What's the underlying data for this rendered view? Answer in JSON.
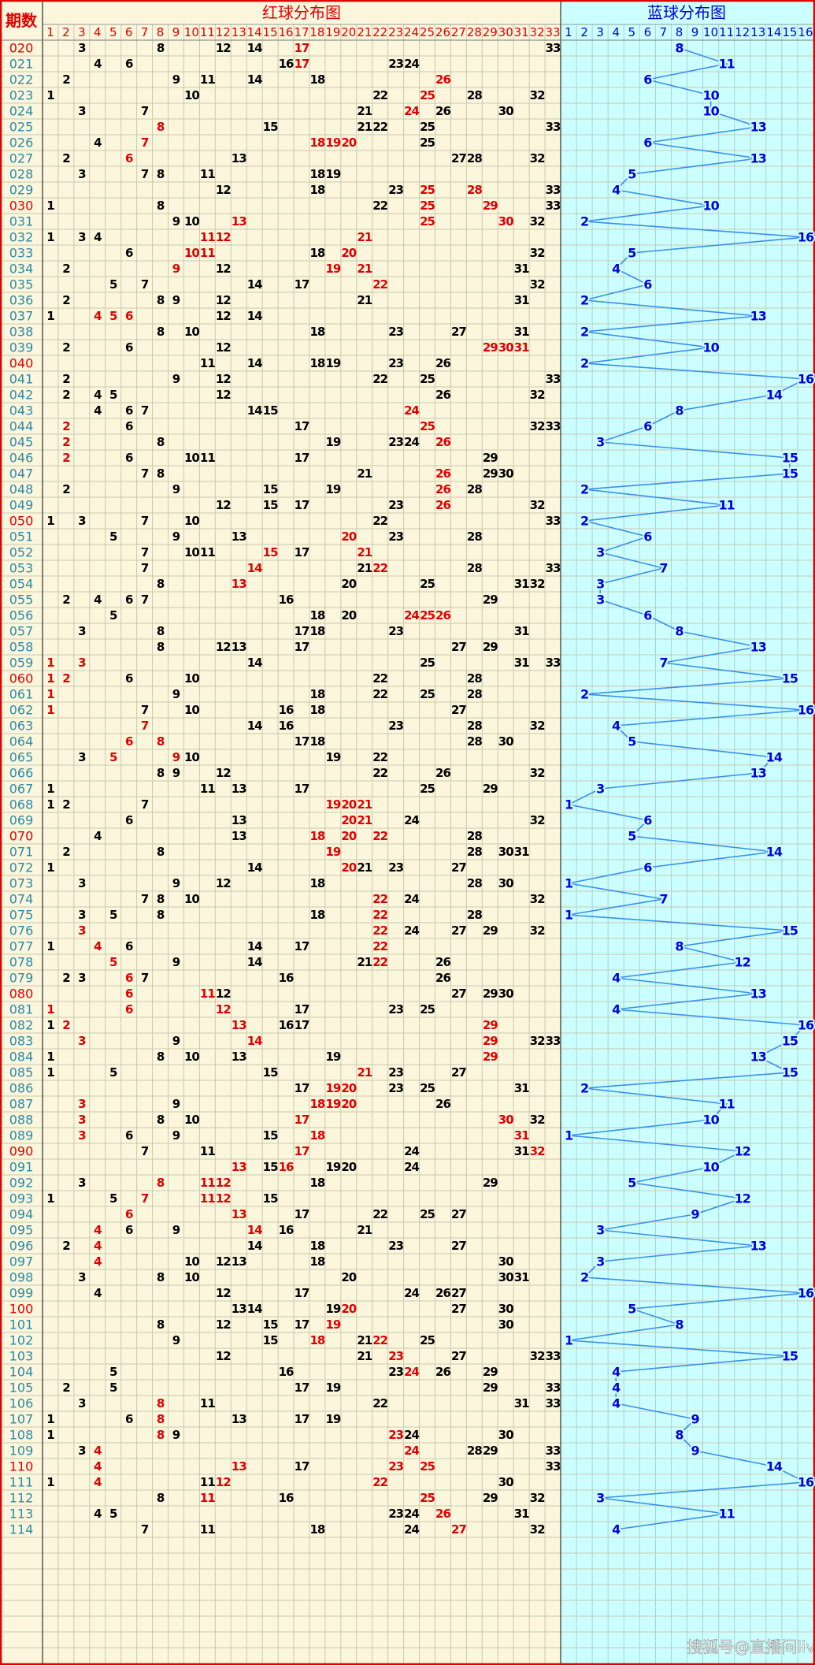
{
  "header": {
    "period_label": "期数",
    "red_title": "红球分布图",
    "blue_title": "蓝球分布图"
  },
  "red_columns": [
    1,
    2,
    3,
    4,
    5,
    6,
    7,
    8,
    9,
    10,
    11,
    12,
    13,
    14,
    15,
    16,
    17,
    18,
    19,
    20,
    21,
    22,
    23,
    24,
    25,
    26,
    27,
    28,
    29,
    30,
    31,
    32,
    33
  ],
  "blue_columns": [
    1,
    2,
    3,
    4,
    5,
    6,
    7,
    8,
    9,
    10,
    11,
    12,
    13,
    14,
    15,
    16
  ],
  "rows": [
    {
      "period": "020",
      "reds": [
        3,
        8,
        12,
        14,
        17,
        33
      ],
      "hot": [
        17
      ],
      "blue": 8
    },
    {
      "period": "021",
      "reds": [
        4,
        6,
        16,
        17,
        23,
        24
      ],
      "hot": [
        17
      ],
      "blue": 11
    },
    {
      "period": "022",
      "reds": [
        2,
        9,
        11,
        14,
        18,
        26
      ],
      "hot": [
        26
      ],
      "blue": 6
    },
    {
      "period": "023",
      "reds": [
        1,
        10,
        22,
        25,
        28,
        32
      ],
      "hot": [
        25
      ],
      "blue": 10
    },
    {
      "period": "024",
      "reds": [
        3,
        7,
        21,
        24,
        26,
        30
      ],
      "hot": [
        24
      ],
      "blue": 10
    },
    {
      "period": "025",
      "reds": [
        8,
        15,
        21,
        22,
        25,
        33
      ],
      "hot": [
        8
      ],
      "blue": 13
    },
    {
      "period": "026",
      "reds": [
        4,
        7,
        18,
        19,
        20,
        25
      ],
      "hot": [
        7,
        18,
        19,
        20
      ],
      "blue": 6
    },
    {
      "period": "027",
      "reds": [
        2,
        6,
        13,
        27,
        28,
        32
      ],
      "hot": [
        6
      ],
      "blue": 13
    },
    {
      "period": "028",
      "reds": [
        3,
        7,
        8,
        11,
        18,
        19
      ],
      "hot": [],
      "blue": 5
    },
    {
      "period": "029",
      "reds": [
        12,
        18,
        23,
        25,
        28,
        33
      ],
      "hot": [
        25,
        28
      ],
      "blue": 4
    },
    {
      "period": "030",
      "reds": [
        1,
        8,
        22,
        25,
        29,
        33
      ],
      "hot": [
        25,
        29
      ],
      "blue": 10
    },
    {
      "period": "031",
      "reds": [
        9,
        10,
        13,
        25,
        30,
        32
      ],
      "hot": [
        13,
        25,
        30
      ],
      "blue": 2
    },
    {
      "period": "032",
      "reds": [
        1,
        3,
        4,
        11,
        12,
        21
      ],
      "hot": [
        11,
        12,
        21
      ],
      "blue": 16
    },
    {
      "period": "033",
      "reds": [
        6,
        10,
        11,
        18,
        20,
        32
      ],
      "hot": [
        10,
        11,
        20
      ],
      "blue": 5
    },
    {
      "period": "034",
      "reds": [
        2,
        9,
        12,
        19,
        21,
        31
      ],
      "hot": [
        9,
        19,
        21
      ],
      "blue": 4
    },
    {
      "period": "035",
      "reds": [
        5,
        7,
        14,
        17,
        22,
        32
      ],
      "hot": [
        22
      ],
      "blue": 6
    },
    {
      "period": "036",
      "reds": [
        2,
        8,
        9,
        12,
        21,
        31
      ],
      "hot": [],
      "blue": 2
    },
    {
      "period": "037",
      "reds": [
        1,
        4,
        5,
        6,
        12,
        14
      ],
      "hot": [
        4,
        5,
        6
      ],
      "blue": 13
    },
    {
      "period": "038",
      "reds": [
        8,
        10,
        18,
        23,
        27,
        31
      ],
      "hot": [],
      "blue": 2
    },
    {
      "period": "039",
      "reds": [
        2,
        6,
        12,
        29,
        30,
        31
      ],
      "hot": [
        29,
        30,
        31
      ],
      "blue": 10
    },
    {
      "period": "040",
      "reds": [
        11,
        14,
        18,
        19,
        23,
        26
      ],
      "hot": [],
      "blue": 2
    },
    {
      "period": "041",
      "reds": [
        2,
        9,
        12,
        22,
        25,
        33
      ],
      "hot": [],
      "blue": 16
    },
    {
      "period": "042",
      "reds": [
        2,
        4,
        5,
        12,
        26,
        32
      ],
      "hot": [],
      "blue": 14
    },
    {
      "period": "043",
      "reds": [
        4,
        6,
        7,
        14,
        15,
        24
      ],
      "hot": [
        24
      ],
      "blue": 8
    },
    {
      "period": "044",
      "reds": [
        2,
        6,
        17,
        25,
        32,
        33
      ],
      "hot": [
        2,
        25
      ],
      "blue": 6
    },
    {
      "period": "045",
      "reds": [
        2,
        8,
        19,
        23,
        24,
        26
      ],
      "hot": [
        2,
        26
      ],
      "blue": 3
    },
    {
      "period": "046",
      "reds": [
        2,
        6,
        10,
        11,
        17,
        29
      ],
      "hot": [
        2
      ],
      "blue": 15
    },
    {
      "period": "047",
      "reds": [
        7,
        8,
        21,
        26,
        29,
        30
      ],
      "hot": [
        26
      ],
      "blue": 15
    },
    {
      "period": "048",
      "reds": [
        2,
        9,
        15,
        19,
        26,
        28
      ],
      "hot": [
        26
      ],
      "blue": 2
    },
    {
      "period": "049",
      "reds": [
        12,
        15,
        17,
        23,
        26,
        32
      ],
      "hot": [
        26
      ],
      "blue": 11
    },
    {
      "period": "050",
      "reds": [
        1,
        3,
        7,
        10,
        22,
        33
      ],
      "hot": [],
      "blue": 2
    },
    {
      "period": "051",
      "reds": [
        5,
        9,
        13,
        20,
        23,
        28
      ],
      "hot": [
        20
      ],
      "blue": 6
    },
    {
      "period": "052",
      "reds": [
        7,
        10,
        11,
        15,
        17,
        21
      ],
      "hot": [
        15,
        21
      ],
      "blue": 3
    },
    {
      "period": "053",
      "reds": [
        7,
        14,
        21,
        22,
        28,
        33
      ],
      "hot": [
        14,
        22
      ],
      "blue": 7
    },
    {
      "period": "054",
      "reds": [
        8,
        13,
        20,
        25,
        31,
        32
      ],
      "hot": [
        13
      ],
      "blue": 3
    },
    {
      "period": "055",
      "reds": [
        2,
        4,
        6,
        7,
        16,
        29
      ],
      "hot": [],
      "blue": 3
    },
    {
      "period": "056",
      "reds": [
        5,
        18,
        20,
        24,
        25,
        26
      ],
      "hot": [
        24,
        25,
        26
      ],
      "blue": 6
    },
    {
      "period": "057",
      "reds": [
        3,
        8,
        17,
        18,
        23,
        31
      ],
      "hot": [],
      "blue": 8
    },
    {
      "period": "058",
      "reds": [
        8,
        12,
        13,
        17,
        27,
        29
      ],
      "hot": [],
      "blue": 13
    },
    {
      "period": "059",
      "reds": [
        1,
        3,
        14,
        25,
        31,
        33
      ],
      "hot": [
        1,
        3
      ],
      "blue": 7
    },
    {
      "period": "060",
      "reds": [
        1,
        2,
        6,
        10,
        22,
        28
      ],
      "hot": [
        1,
        2
      ],
      "blue": 15
    },
    {
      "period": "061",
      "reds": [
        1,
        9,
        18,
        22,
        25,
        28
      ],
      "hot": [
        1
      ],
      "blue": 2
    },
    {
      "period": "062",
      "reds": [
        1,
        7,
        10,
        16,
        18,
        27
      ],
      "hot": [
        1
      ],
      "blue": 16
    },
    {
      "period": "063",
      "reds": [
        7,
        14,
        16,
        23,
        28,
        32
      ],
      "hot": [
        7
      ],
      "blue": 4
    },
    {
      "period": "064",
      "reds": [
        6,
        8,
        17,
        18,
        28,
        30
      ],
      "hot": [
        6,
        8
      ],
      "blue": 5
    },
    {
      "period": "065",
      "reds": [
        3,
        5,
        9,
        10,
        19,
        22
      ],
      "hot": [
        5,
        9
      ],
      "blue": 14
    },
    {
      "period": "066",
      "reds": [
        8,
        9,
        12,
        22,
        26,
        32
      ],
      "hot": [],
      "blue": 13
    },
    {
      "period": "067",
      "reds": [
        1,
        11,
        13,
        17,
        25,
        29
      ],
      "hot": [],
      "blue": 3
    },
    {
      "period": "068",
      "reds": [
        1,
        2,
        7,
        19,
        20,
        21
      ],
      "hot": [
        19,
        20,
        21
      ],
      "blue": 1
    },
    {
      "period": "069",
      "reds": [
        6,
        13,
        20,
        21,
        24,
        32
      ],
      "hot": [
        20,
        21
      ],
      "blue": 6
    },
    {
      "period": "070",
      "reds": [
        4,
        13,
        18,
        20,
        22,
        28
      ],
      "hot": [
        18,
        20,
        22
      ],
      "blue": 5
    },
    {
      "period": "071",
      "reds": [
        2,
        8,
        19,
        28,
        30,
        31
      ],
      "hot": [
        19
      ],
      "blue": 14
    },
    {
      "period": "072",
      "reds": [
        1,
        14,
        20,
        21,
        23,
        27
      ],
      "hot": [
        20
      ],
      "blue": 6
    },
    {
      "period": "073",
      "reds": [
        3,
        9,
        12,
        18,
        28,
        30
      ],
      "hot": [],
      "blue": 1
    },
    {
      "period": "074",
      "reds": [
        7,
        8,
        10,
        22,
        24,
        32
      ],
      "hot": [
        22
      ],
      "blue": 7
    },
    {
      "period": "075",
      "reds": [
        3,
        5,
        8,
        18,
        22,
        28
      ],
      "hot": [
        22
      ],
      "blue": 1
    },
    {
      "period": "076",
      "reds": [
        3,
        22,
        24,
        27,
        29,
        32
      ],
      "hot": [
        3,
        22
      ],
      "blue": 15
    },
    {
      "period": "077",
      "reds": [
        1,
        4,
        6,
        14,
        17,
        22
      ],
      "hot": [
        4,
        22
      ],
      "blue": 8
    },
    {
      "period": "078",
      "reds": [
        5,
        9,
        14,
        21,
        22,
        26
      ],
      "hot": [
        5,
        22
      ],
      "blue": 12
    },
    {
      "period": "079",
      "reds": [
        2,
        3,
        6,
        7,
        16,
        26
      ],
      "hot": [
        6
      ],
      "blue": 4
    },
    {
      "period": "080",
      "reds": [
        6,
        11,
        12,
        27,
        29,
        30
      ],
      "hot": [
        6,
        11
      ],
      "blue": 13
    },
    {
      "period": "081",
      "reds": [
        1,
        6,
        12,
        17,
        23,
        25
      ],
      "hot": [
        1,
        6,
        12
      ],
      "blue": 4
    },
    {
      "period": "082",
      "reds": [
        1,
        2,
        13,
        16,
        17,
        29
      ],
      "hot": [
        2,
        13,
        29
      ],
      "blue": 16
    },
    {
      "period": "083",
      "reds": [
        3,
        9,
        14,
        29,
        32,
        33
      ],
      "hot": [
        3,
        14,
        29
      ],
      "blue": 15
    },
    {
      "period": "084",
      "reds": [
        1,
        8,
        10,
        13,
        19,
        29
      ],
      "hot": [
        29
      ],
      "blue": 13
    },
    {
      "period": "085",
      "reds": [
        1,
        5,
        15,
        21,
        23,
        27
      ],
      "hot": [
        21
      ],
      "blue": 15
    },
    {
      "period": "086",
      "reds": [
        17,
        19,
        20,
        23,
        25,
        31
      ],
      "hot": [
        19,
        20
      ],
      "blue": 2
    },
    {
      "period": "087",
      "reds": [
        3,
        9,
        18,
        19,
        20,
        26
      ],
      "hot": [
        3,
        18,
        19,
        20
      ],
      "blue": 11
    },
    {
      "period": "088",
      "reds": [
        3,
        8,
        10,
        17,
        30,
        32
      ],
      "hot": [
        3,
        17,
        30
      ],
      "blue": 10
    },
    {
      "period": "089",
      "reds": [
        3,
        6,
        9,
        15,
        18,
        31
      ],
      "hot": [
        3,
        18,
        31
      ],
      "blue": 1
    },
    {
      "period": "090",
      "reds": [
        7,
        11,
        17,
        24,
        31,
        32
      ],
      "hot": [
        17,
        32
      ],
      "blue": 12
    },
    {
      "period": "091",
      "reds": [
        13,
        15,
        16,
        19,
        20,
        24
      ],
      "hot": [
        13,
        16
      ],
      "blue": 10
    },
    {
      "period": "092",
      "reds": [
        3,
        8,
        11,
        12,
        18,
        29
      ],
      "hot": [
        8,
        11,
        12
      ],
      "blue": 5
    },
    {
      "period": "093",
      "reds": [
        1,
        5,
        7,
        11,
        12,
        15
      ],
      "hot": [
        7,
        11,
        12
      ],
      "blue": 12
    },
    {
      "period": "094",
      "reds": [
        6,
        13,
        17,
        22,
        25,
        27
      ],
      "hot": [
        6,
        13
      ],
      "blue": 9
    },
    {
      "period": "095",
      "reds": [
        4,
        6,
        9,
        14,
        16,
        21
      ],
      "hot": [
        4,
        14
      ],
      "blue": 3
    },
    {
      "period": "096",
      "reds": [
        2,
        4,
        14,
        18,
        23,
        27
      ],
      "hot": [
        4
      ],
      "blue": 13
    },
    {
      "period": "097",
      "reds": [
        4,
        10,
        12,
        13,
        18,
        30
      ],
      "hot": [
        4
      ],
      "blue": 3
    },
    {
      "period": "098",
      "reds": [
        3,
        8,
        10,
        20,
        30,
        31
      ],
      "hot": [],
      "blue": 2
    },
    {
      "period": "099",
      "reds": [
        4,
        12,
        17,
        24,
        26,
        27
      ],
      "hot": [],
      "blue": 16
    },
    {
      "period": "100",
      "reds": [
        13,
        14,
        19,
        20,
        27,
        30
      ],
      "hot": [
        20
      ],
      "blue": 5
    },
    {
      "period": "101",
      "reds": [
        8,
        12,
        15,
        17,
        19,
        30
      ],
      "hot": [
        19
      ],
      "blue": 8
    },
    {
      "period": "102",
      "reds": [
        9,
        15,
        18,
        21,
        22,
        25
      ],
      "hot": [
        18,
        22
      ],
      "blue": 1
    },
    {
      "period": "103",
      "reds": [
        12,
        21,
        23,
        27,
        32,
        33
      ],
      "hot": [
        23
      ],
      "blue": 15
    },
    {
      "period": "104",
      "reds": [
        5,
        16,
        23,
        24,
        26,
        29
      ],
      "hot": [
        24
      ],
      "blue": 4
    },
    {
      "period": "105",
      "reds": [
        2,
        5,
        17,
        19,
        29,
        33
      ],
      "hot": [],
      "blue": 4
    },
    {
      "period": "106",
      "reds": [
        3,
        8,
        11,
        22,
        31,
        33
      ],
      "hot": [
        8
      ],
      "blue": 4
    },
    {
      "period": "107",
      "reds": [
        1,
        6,
        8,
        13,
        17,
        19
      ],
      "hot": [
        8
      ],
      "blue": 9
    },
    {
      "period": "108",
      "reds": [
        1,
        8,
        9,
        23,
        24,
        30
      ],
      "hot": [
        8,
        23
      ],
      "blue": 8
    },
    {
      "period": "109",
      "reds": [
        3,
        4,
        24,
        28,
        29,
        33
      ],
      "hot": [
        4,
        24
      ],
      "blue": 9
    },
    {
      "period": "110",
      "reds": [
        4,
        13,
        17,
        23,
        25,
        33
      ],
      "hot": [
        4,
        13,
        23,
        25
      ],
      "blue": 14
    },
    {
      "period": "111",
      "reds": [
        1,
        4,
        11,
        12,
        22,
        30
      ],
      "hot": [
        4,
        12,
        22
      ],
      "blue": 16
    },
    {
      "period": "112",
      "reds": [
        8,
        11,
        16,
        25,
        29,
        32
      ],
      "hot": [
        11,
        25
      ],
      "blue": 3
    },
    {
      "period": "113",
      "reds": [
        4,
        5,
        23,
        24,
        26,
        31
      ],
      "hot": [
        26
      ],
      "blue": 11
    },
    {
      "period": "114",
      "reds": [
        7,
        11,
        18,
        24,
        27,
        32
      ],
      "hot": [
        27
      ],
      "blue": 4
    }
  ],
  "watermark": "搜狐号@直播间live"
}
